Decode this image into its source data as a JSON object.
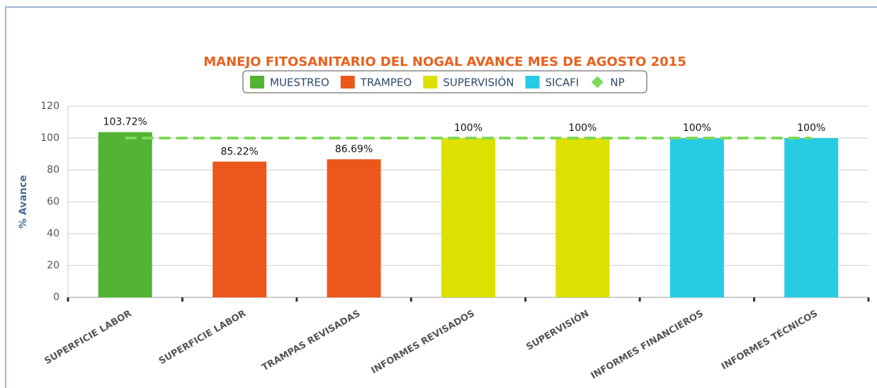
{
  "chart_data": {
    "type": "bar",
    "title": "MANEJO FITOSANITARIO DEL NOGAL AVANCE MES DE AGOSTO 2015",
    "y_label": "% Avance",
    "categories": [
      "SUPERFICIE LABOR",
      "SUPERFICIE LABOR",
      "TRAMPAS REVISADAS",
      "INFORMES REVISADOS",
      "SUPERVISIÓN",
      "INFORMES FINANCIEROS",
      "INFORMES TÉCNICOS"
    ],
    "series": [
      {
        "name": "MUESTREO",
        "color": "#52b334",
        "values": [
          103.72,
          null,
          null,
          null,
          null,
          null,
          null
        ],
        "value_labels": [
          "103.72%",
          null,
          null,
          null,
          null,
          null,
          null
        ]
      },
      {
        "name": "TRAMPEO",
        "color": "#ec581c",
        "values": [
          null,
          85.22,
          86.69,
          null,
          null,
          null,
          null
        ],
        "value_labels": [
          null,
          "85.22%",
          "86.69%",
          null,
          null,
          null,
          null
        ]
      },
      {
        "name": "SUPERVISIÓN",
        "color": "#dde000",
        "values": [
          null,
          null,
          null,
          100,
          100,
          null,
          null
        ],
        "value_labels": [
          null,
          null,
          null,
          "100%",
          "100%",
          null,
          null
        ]
      },
      {
        "name": "SICAFI",
        "color": "#26cce4",
        "values": [
          null,
          null,
          null,
          null,
          null,
          100,
          100
        ],
        "value_labels": [
          null,
          null,
          null,
          null,
          null,
          "100%",
          "100%"
        ]
      },
      {
        "name": "NP",
        "color": "#7ed957",
        "type": "line",
        "values": [
          100,
          100,
          100,
          100,
          100,
          100,
          100
        ]
      }
    ],
    "ylim": [
      0,
      120
    ],
    "yticks": [
      0,
      20,
      40,
      60,
      80,
      100,
      120
    ],
    "grid": true
  }
}
